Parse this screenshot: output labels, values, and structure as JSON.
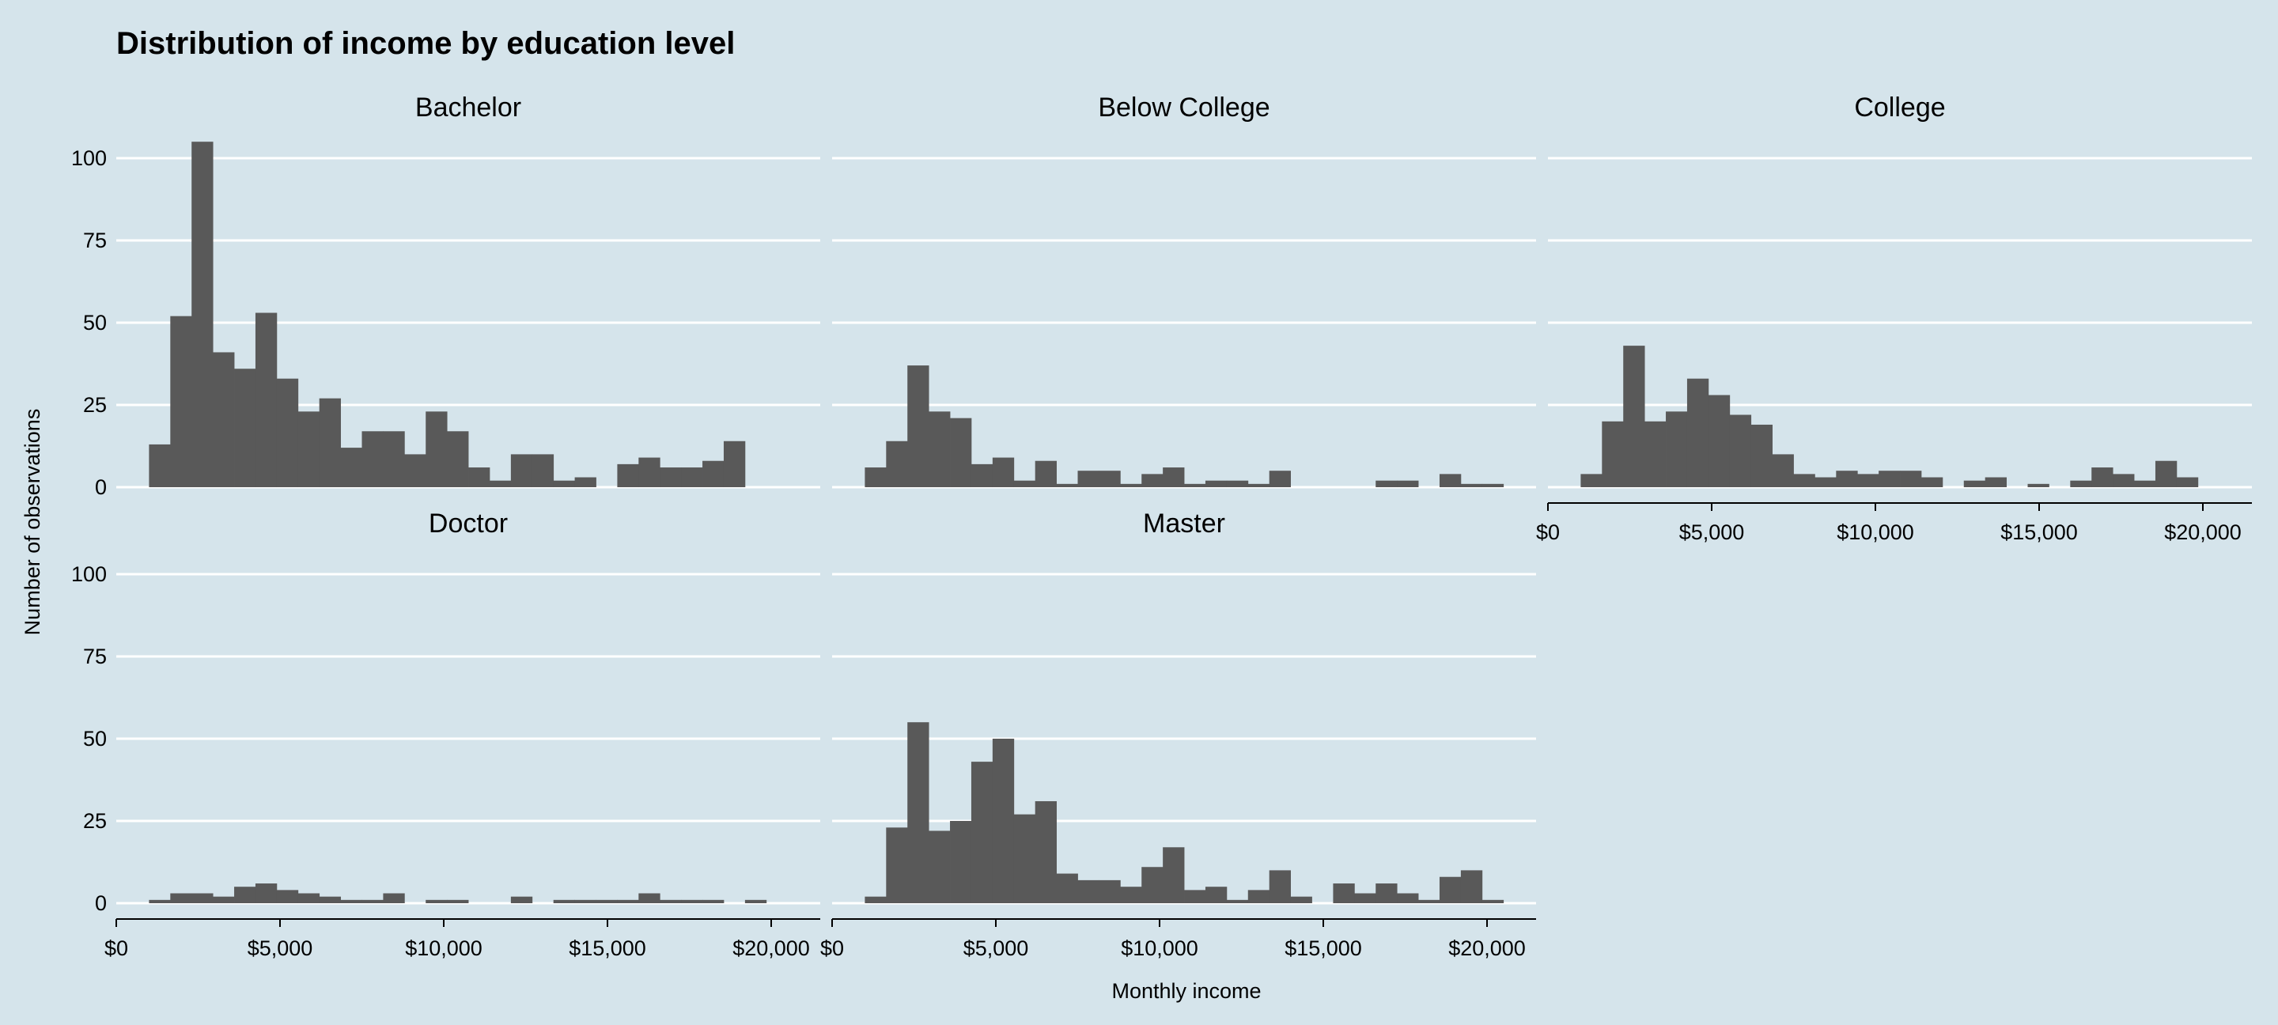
{
  "chart_data": {
    "type": "bar",
    "title": "Distribution of income by education level",
    "xlabel": "Monthly income",
    "ylabel": "Number of observations",
    "xlim": [
      0,
      21000
    ],
    "ylim": [
      0,
      110
    ],
    "grid": true,
    "bin_start": 1000,
    "bin_width": 650,
    "x_ticks": [
      0,
      5000,
      10000,
      15000,
      20000
    ],
    "x_tick_labels": [
      "$0",
      "$5,000",
      "$10,000",
      "$15,000",
      "$20,000"
    ],
    "y_ticks": [
      0,
      25,
      50,
      75,
      100
    ],
    "y_tick_labels": [
      "0",
      "25",
      "50",
      "75",
      "100"
    ],
    "panels": [
      {
        "name": "Bachelor",
        "values": [
          13,
          52,
          105,
          41,
          36,
          53,
          33,
          23,
          27,
          12,
          17,
          17,
          10,
          23,
          17,
          6,
          2,
          10,
          10,
          2,
          3,
          0,
          7,
          9,
          6,
          6,
          8,
          14,
          0
        ]
      },
      {
        "name": "Below College",
        "values": [
          6,
          14,
          37,
          23,
          21,
          7,
          9,
          2,
          8,
          1,
          5,
          5,
          1,
          4,
          6,
          1,
          2,
          2,
          1,
          5,
          0,
          0,
          0,
          0,
          2,
          2,
          0,
          4,
          1,
          1
        ]
      },
      {
        "name": "College",
        "values": [
          4,
          20,
          43,
          20,
          23,
          33,
          28,
          22,
          19,
          10,
          4,
          3,
          5,
          4,
          5,
          5,
          3,
          0,
          2,
          3,
          0,
          1,
          0,
          2,
          6,
          4,
          2,
          8,
          3
        ]
      },
      {
        "name": "Doctor",
        "values": [
          1,
          3,
          3,
          2,
          5,
          6,
          4,
          3,
          2,
          1,
          1,
          3,
          0,
          1,
          1,
          0,
          0,
          2,
          0,
          1,
          1,
          1,
          1,
          3,
          1,
          1,
          1,
          0,
          1
        ]
      },
      {
        "name": "Master",
        "values": [
          2,
          23,
          55,
          22,
          25,
          43,
          50,
          27,
          31,
          9,
          7,
          7,
          5,
          11,
          17,
          4,
          5,
          1,
          4,
          10,
          2,
          0,
          6,
          3,
          6,
          3,
          1,
          8,
          10,
          1
        ]
      }
    ]
  }
}
